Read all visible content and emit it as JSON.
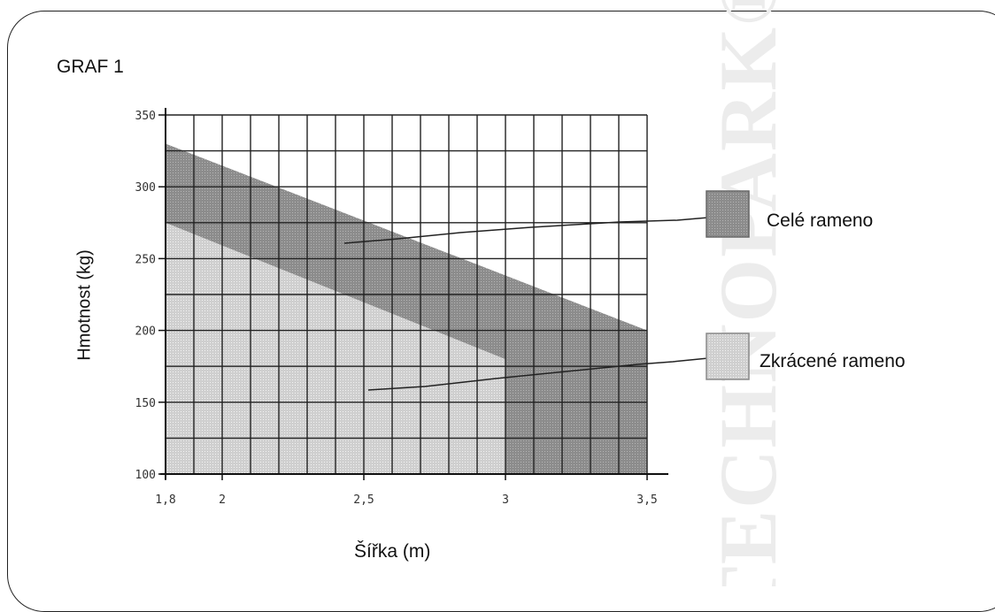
{
  "page": {
    "title": "GRAF 1",
    "watermark": "TECHNOPARK®"
  },
  "chart_data": {
    "type": "area",
    "title": "GRAF 1",
    "xlabel": "Šířka (m)",
    "ylabel": "Hmotnost (kg)",
    "xlim": [
      1.8,
      3.5
    ],
    "ylim": [
      100,
      350
    ],
    "x_ticks": [
      1.8,
      2,
      2.5,
      3,
      3.5
    ],
    "x_tick_labels": [
      "1,8",
      "2",
      "2,5",
      "3",
      "3,5"
    ],
    "y_ticks": [
      100,
      150,
      200,
      250,
      300,
      350
    ],
    "y_tick_labels": [
      "100",
      "150",
      "200",
      "250",
      "300",
      "350"
    ],
    "grid": true,
    "series": [
      {
        "name": "Celé rameno",
        "x": [
          1.8,
          3.5
        ],
        "values": [
          330,
          200
        ],
        "color": "#8c8c8c"
      },
      {
        "name": "Zkrácené rameno",
        "x": [
          1.8,
          3.0,
          3.0,
          3.5
        ],
        "values": [
          275,
          180,
          100,
          100
        ],
        "color": "#cfcfcf"
      }
    ],
    "legend": "right"
  }
}
